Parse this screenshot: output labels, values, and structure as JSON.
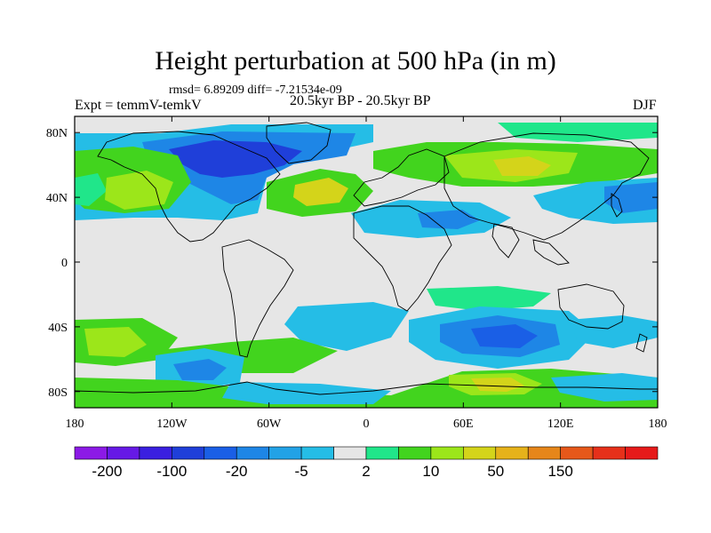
{
  "header": {
    "title": "Height perturbation at 500 hPa (in m)",
    "stats": "rmsd= 6.89209 diff= -7.21534e-09",
    "left_label": "Expt = temmV-temkV",
    "center_label": "20.5kyr BP - 20.5kyr BP",
    "right_label": "DJF"
  },
  "chart_data": {
    "type": "heatmap",
    "projection": "cylindrical-equidistant",
    "lon_range": [
      -180,
      180
    ],
    "lat_range": [
      -90,
      90
    ],
    "y_ticks": [
      {
        "lat": 80,
        "label": "80N"
      },
      {
        "lat": 40,
        "label": "40N"
      },
      {
        "lat": 0,
        "label": "0"
      },
      {
        "lat": -40,
        "label": "40S"
      },
      {
        "lat": -80,
        "label": "80S"
      }
    ],
    "x_ticks": [
      {
        "lon": -180,
        "label": "180"
      },
      {
        "lon": -120,
        "label": "120W"
      },
      {
        "lon": -60,
        "label": "60W"
      },
      {
        "lon": 0,
        "label": "0"
      },
      {
        "lon": 60,
        "label": "60E"
      },
      {
        "lon": 120,
        "label": "120E"
      },
      {
        "lon": 180,
        "label": "180"
      }
    ],
    "colorbar": {
      "colors": [
        "#8C1AE6",
        "#6619E6",
        "#3A1FE0",
        "#1F3FD9",
        "#1A5FE6",
        "#1E86E6",
        "#22A2E6",
        "#25BDE6",
        "#E6E6E6",
        "#20E68A",
        "#42D41E",
        "#9CE61A",
        "#D4D41A",
        "#E6B21A",
        "#E6861A",
        "#E6581A",
        "#E6301A",
        "#E61A1A"
      ],
      "labels": [
        {
          "boundary": 1,
          "text": "-200"
        },
        {
          "boundary": 3,
          "text": "-100"
        },
        {
          "boundary": 5,
          "text": "-20"
        },
        {
          "boundary": 7,
          "text": "-5"
        },
        {
          "boundary": 9,
          "text": "2"
        },
        {
          "boundary": 11,
          "text": "10"
        },
        {
          "boundary": 13,
          "text": "50"
        },
        {
          "boundary": 15,
          "text": "150"
        }
      ]
    },
    "anomaly_centers": [
      {
        "region": "north-america-arctic",
        "lon": -90,
        "lat": 65,
        "sign": "negative",
        "level": 4
      },
      {
        "region": "canada",
        "lon": -100,
        "lat": 72,
        "sign": "negative",
        "level": 4
      },
      {
        "region": "north-pacific-east",
        "lon": -140,
        "lat": 45,
        "sign": "positive",
        "level": 2
      },
      {
        "region": "north-atlantic",
        "lon": -30,
        "lat": 38,
        "sign": "positive",
        "level": 3
      },
      {
        "region": "eurasia",
        "lon": 80,
        "lat": 58,
        "sign": "positive",
        "level": 3
      },
      {
        "region": "east-asia",
        "lon": 150,
        "lat": 40,
        "sign": "negative",
        "level": 2
      },
      {
        "region": "southern-ocean-indian",
        "lon": 70,
        "lat": -45,
        "sign": "negative",
        "level": 3
      },
      {
        "region": "south-pacific-west",
        "lon": -165,
        "lat": -45,
        "sign": "positive",
        "level": 2
      },
      {
        "region": "antarctic-indian",
        "lon": 75,
        "lat": -75,
        "sign": "positive",
        "level": 2
      }
    ]
  }
}
